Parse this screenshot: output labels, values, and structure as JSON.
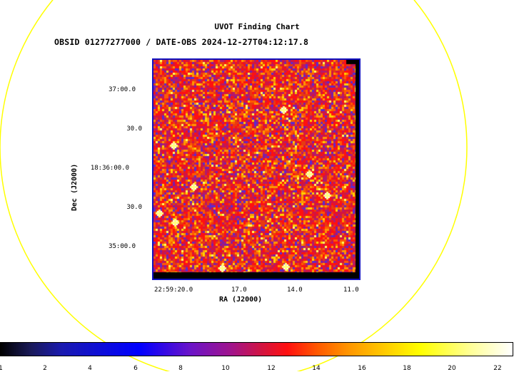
{
  "header": {
    "title": "UVOT Finding Chart",
    "subtitle": "OBSID 01277277000 / DATE-OBS 2024-12-27T04:12:17.8"
  },
  "axes": {
    "xlabel": "RA (J2000)",
    "ylabel": "Dec (J2000)",
    "x_ticks": [
      "22:59:20.0",
      "17.0",
      "14.0",
      "11.0"
    ],
    "y_ticks": [
      "37:00.0",
      "30.0",
      "18:36:00.0",
      "30.0",
      "35:00.0"
    ]
  },
  "colorbar": {
    "ticks": [
      "1",
      "2",
      "4",
      "6",
      "8",
      "10",
      "12",
      "14",
      "16",
      "18",
      "20",
      "22"
    ]
  },
  "colors": {
    "circle": "#ffff00",
    "frame": "#1010c0",
    "background_noise": "#d23210"
  }
}
